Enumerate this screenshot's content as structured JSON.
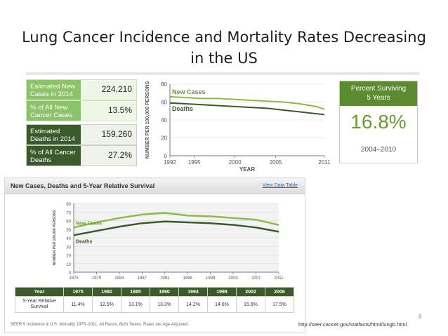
{
  "slide": {
    "title_line1": "Lung Cancer Incidence and Mortality Rates Decreasing",
    "title_line2": "in the US",
    "page_number": "8",
    "source_url": "http://seer.cancer.gov/statfacts/html/lungb.html"
  },
  "stats": [
    {
      "label": "Estimated New Cases in 2014",
      "value": "224,210"
    },
    {
      "label": "% of All New Cancer Cases",
      "value": "13.5%"
    },
    {
      "label": "Estimated Deaths in 2014",
      "value": "159,260"
    },
    {
      "label": "% of All Cancer Deaths",
      "value": "27.2%"
    }
  ],
  "survival_box": {
    "header_line1": "Percent Surviving",
    "header_line2": "5 Years",
    "value": "16.8%",
    "period": "2004–2010"
  },
  "panel": {
    "title": "New Cases, Deaths and 5-Year Relative Survival",
    "link": "View Data Table",
    "table_year_label": "Year",
    "table_survival_label_1": "5-Year Relative",
    "table_survival_label_2": "Survival",
    "footnote": "SEER 9 Incidence & U.S. Mortality 1975–2011, All Races, Both Sexes. Rates are Age-Adjusted."
  },
  "survival_table": {
    "years": [
      "1975",
      "1980",
      "1985",
      "1990",
      "1994",
      "1998",
      "2002",
      "2006"
    ],
    "values": [
      "11.4%",
      "12.5%",
      "13.1%",
      "13.3%",
      "14.2%",
      "14.6%",
      "15.6%",
      "17.5%"
    ]
  },
  "colors": {
    "dark_green": "#3b5a2b",
    "mid_green": "#5c8a2e",
    "light_green": "#8dbb4a",
    "stat_light_bg": "#8cc36a",
    "stat_dark_bg": "#3b5a2b"
  },
  "chart_data": [
    {
      "type": "line",
      "title": "",
      "xlabel": "YEAR",
      "ylabel": "NUMBER PER 100,000 PERSONS",
      "xlim": [
        1992,
        2011
      ],
      "ylim": [
        0,
        80
      ],
      "xticks": [
        "1992",
        "1995",
        "2000",
        "2005",
        "2011"
      ],
      "yticks": [
        "0",
        "20",
        "40",
        "60",
        "80"
      ],
      "series": [
        {
          "name": "New Cases",
          "x": [
            1992,
            1994,
            1996,
            1998,
            2000,
            2002,
            2004,
            2006,
            2008,
            2010,
            2011
          ],
          "values": [
            66,
            65,
            64,
            64,
            63,
            62,
            61,
            60,
            58,
            55,
            52
          ]
        },
        {
          "name": "Deaths",
          "x": [
            1992,
            1994,
            1996,
            1998,
            2000,
            2002,
            2004,
            2006,
            2008,
            2010,
            2011
          ],
          "values": [
            59,
            58,
            57,
            56,
            55,
            54,
            53,
            51,
            49,
            47,
            46
          ]
        }
      ]
    },
    {
      "type": "line",
      "title": "New Cases, Deaths and 5-Year Relative Survival",
      "xlabel": "",
      "ylabel": "NUMBER PER 100,000 PERSONS",
      "xlim": [
        1975,
        2011
      ],
      "ylim": [
        0,
        80
      ],
      "xticks": [
        "1975",
        "1979",
        "1983",
        "1987",
        "1991",
        "1995",
        "1999",
        "2003",
        "2007",
        "2011"
      ],
      "yticks": [
        "0",
        "10",
        "20",
        "30",
        "40",
        "50",
        "60",
        "70",
        "80"
      ],
      "series": [
        {
          "name": "New Cases",
          "x": [
            1975,
            1979,
            1983,
            1987,
            1991,
            1995,
            1999,
            2003,
            2007,
            2011
          ],
          "values": [
            52,
            58,
            63,
            67,
            69,
            66,
            65,
            63,
            61,
            55
          ]
        },
        {
          "name": "Deaths",
          "x": [
            1975,
            1979,
            1983,
            1987,
            1991,
            1995,
            1999,
            2003,
            2007,
            2011
          ],
          "values": [
            43,
            48,
            53,
            57,
            59,
            58,
            57,
            55,
            52,
            47
          ]
        }
      ]
    }
  ]
}
